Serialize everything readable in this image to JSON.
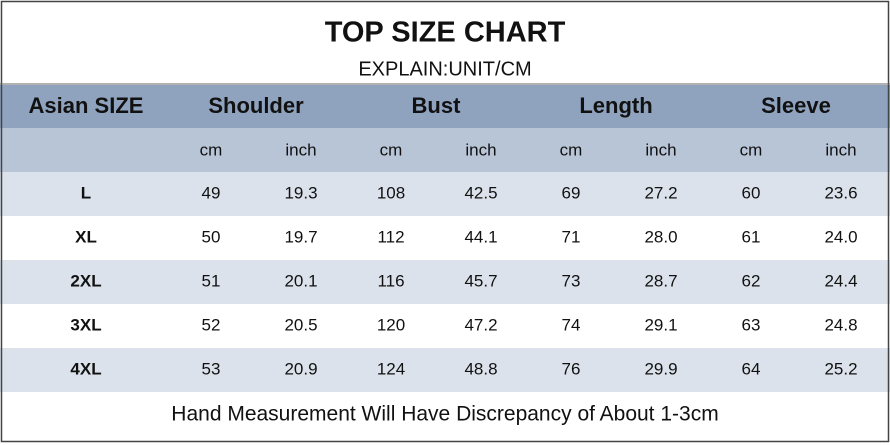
{
  "header": {
    "title": "TOP SIZE CHART",
    "subtitle": "EXPLAIN:UNIT/CM"
  },
  "table": {
    "size_label": "Asian SIZE",
    "groups": [
      "Shoulder",
      "Bust",
      "Length",
      "Sleeve"
    ],
    "units": [
      "cm",
      "inch",
      "cm",
      "inch",
      "cm",
      "inch",
      "cm",
      "inch"
    ],
    "rows": [
      [
        "L",
        "49",
        "19.3",
        "108",
        "42.5",
        "69",
        "27.2",
        "60",
        "23.6"
      ],
      [
        "XL",
        "50",
        "19.7",
        "112",
        "44.1",
        "71",
        "28.0",
        "61",
        "24.0"
      ],
      [
        "2XL",
        "51",
        "20.1",
        "116",
        "45.7",
        "73",
        "28.7",
        "62",
        "24.4"
      ],
      [
        "3XL",
        "52",
        "20.5",
        "120",
        "47.2",
        "74",
        "29.1",
        "63",
        "24.8"
      ],
      [
        "4XL",
        "53",
        "20.9",
        "124",
        "48.8",
        "76",
        "29.9",
        "64",
        "25.2"
      ]
    ]
  },
  "footer": "Hand Measurement Will Have Discrepancy of About 1-3cm"
}
